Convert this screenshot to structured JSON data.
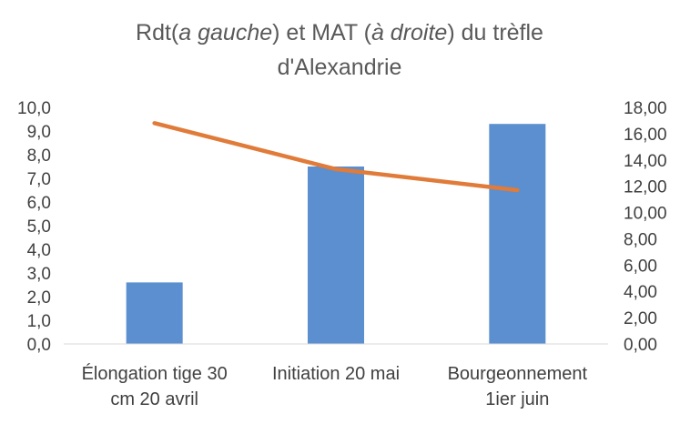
{
  "chart_data": {
    "type": "bar",
    "title_parts": [
      {
        "text": "Rdt(",
        "italic": false
      },
      {
        "text": "a gauche",
        "italic": true
      },
      {
        "text": ") et MAT (",
        "italic": false
      },
      {
        "text": "à droite",
        "italic": true
      },
      {
        "text": ") du trèfle",
        "italic": false
      }
    ],
    "title_line2": "d'Alexandrie",
    "categories": [
      [
        "Élongation tige 30",
        "cm 20 avril"
      ],
      [
        "Initiation 20 mai"
      ],
      [
        "Bourgeonnement",
        "1ier juin"
      ]
    ],
    "series": [
      {
        "kind": "bar",
        "axis": "left",
        "values": [
          2.6,
          7.5,
          9.3
        ],
        "color": "#5B8FCF"
      },
      {
        "kind": "line",
        "axis": "right",
        "values": [
          16.8,
          13.3,
          11.7
        ],
        "color": "#E07B39"
      }
    ],
    "y_left": {
      "min": 0,
      "max": 10,
      "step": 1,
      "tick_labels": [
        "0,0",
        "1,0",
        "2,0",
        "3,0",
        "4,0",
        "5,0",
        "6,0",
        "7,0",
        "8,0",
        "9,0",
        "10,0"
      ]
    },
    "y_right": {
      "min": 0,
      "max": 18,
      "step": 2,
      "tick_labels": [
        "0,00",
        "2,00",
        "4,00",
        "6,00",
        "8,00",
        "10,00",
        "12,00",
        "14,00",
        "16,00",
        "18,00"
      ]
    },
    "grid": false,
    "legend": "none"
  }
}
